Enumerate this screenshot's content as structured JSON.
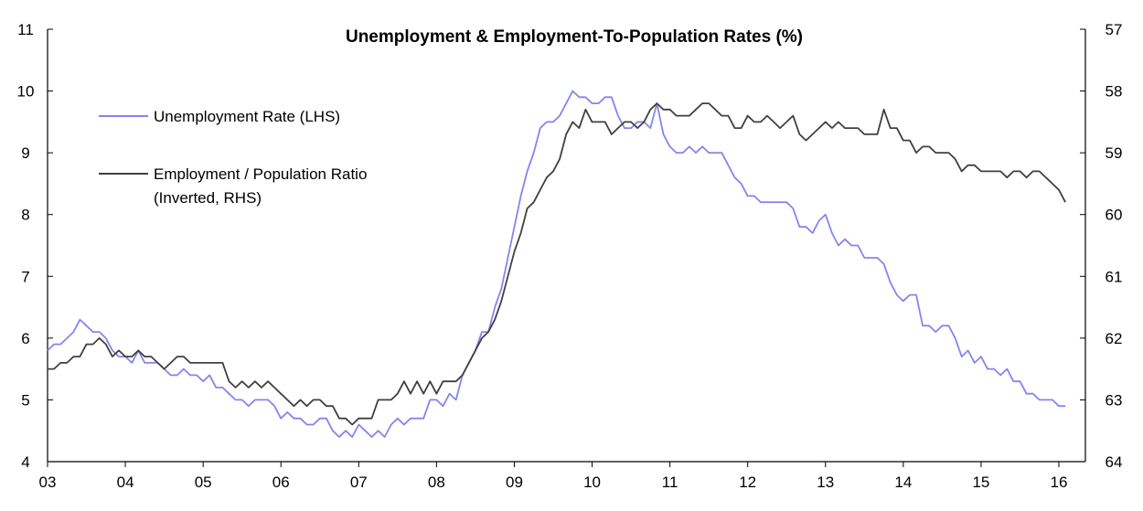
{
  "chart_data": {
    "type": "line",
    "title": "Unemployment & Employment-To-Population Rates (%)",
    "xlabel": "",
    "ylabel_left": "",
    "ylabel_right": "",
    "x_start": "2003-01",
    "frequency": "monthly",
    "x_tick_labels": [
      "03",
      "04",
      "05",
      "06",
      "07",
      "08",
      "09",
      "10",
      "11",
      "12",
      "13",
      "14",
      "15",
      "16"
    ],
    "y_left": {
      "min": 4,
      "max": 11,
      "ticks": [
        "4",
        "5",
        "6",
        "7",
        "8",
        "9",
        "10",
        "11"
      ]
    },
    "y_right": {
      "min": 57,
      "max": 64,
      "inverted": true,
      "ticks": [
        "57",
        "58",
        "59",
        "60",
        "61",
        "62",
        "63",
        "64"
      ]
    },
    "grid": false,
    "legend_position": "top-left",
    "series": [
      {
        "name": "Unemployment Rate (LHS)",
        "axis": "left",
        "color": "#8585ee",
        "values": [
          5.8,
          5.9,
          5.9,
          6.0,
          6.1,
          6.3,
          6.2,
          6.1,
          6.1,
          6.0,
          5.8,
          5.7,
          5.7,
          5.6,
          5.8,
          5.6,
          5.6,
          5.6,
          5.5,
          5.4,
          5.4,
          5.5,
          5.4,
          5.4,
          5.3,
          5.4,
          5.2,
          5.2,
          5.1,
          5.0,
          5.0,
          4.9,
          5.0,
          5.0,
          5.0,
          4.9,
          4.7,
          4.8,
          4.7,
          4.7,
          4.6,
          4.6,
          4.7,
          4.7,
          4.5,
          4.4,
          4.5,
          4.4,
          4.6,
          4.5,
          4.4,
          4.5,
          4.4,
          4.6,
          4.7,
          4.6,
          4.7,
          4.7,
          4.7,
          5.0,
          5.0,
          4.9,
          5.1,
          5.0,
          5.4,
          5.6,
          5.8,
          6.1,
          6.1,
          6.5,
          6.8,
          7.3,
          7.8,
          8.3,
          8.7,
          9.0,
          9.4,
          9.5,
          9.5,
          9.6,
          9.8,
          10.0,
          9.9,
          9.9,
          9.8,
          9.8,
          9.9,
          9.9,
          9.6,
          9.4,
          9.4,
          9.5,
          9.5,
          9.4,
          9.8,
          9.3,
          9.1,
          9.0,
          9.0,
          9.1,
          9.0,
          9.1,
          9.0,
          9.0,
          9.0,
          8.8,
          8.6,
          8.5,
          8.3,
          8.3,
          8.2,
          8.2,
          8.2,
          8.2,
          8.2,
          8.1,
          7.8,
          7.8,
          7.7,
          7.9,
          8.0,
          7.7,
          7.5,
          7.6,
          7.5,
          7.5,
          7.3,
          7.3,
          7.3,
          7.2,
          6.9,
          6.7,
          6.6,
          6.7,
          6.7,
          6.2,
          6.2,
          6.1,
          6.2,
          6.2,
          6.0,
          5.7,
          5.8,
          5.6,
          5.7,
          5.5,
          5.5,
          5.4,
          5.5,
          5.3,
          5.3,
          5.1,
          5.1,
          5.0,
          5.0,
          5.0,
          4.9,
          4.9
        ]
      },
      {
        "name": "Employment / Population Ratio",
        "name_line2": "(Inverted, RHS)",
        "axis": "right",
        "color": "#404040",
        "values": [
          62.5,
          62.5,
          62.4,
          62.4,
          62.3,
          62.3,
          62.1,
          62.1,
          62.0,
          62.1,
          62.3,
          62.2,
          62.3,
          62.3,
          62.2,
          62.3,
          62.3,
          62.4,
          62.5,
          62.4,
          62.3,
          62.3,
          62.4,
          62.4,
          62.4,
          62.4,
          62.4,
          62.4,
          62.7,
          62.8,
          62.7,
          62.8,
          62.7,
          62.8,
          62.7,
          62.8,
          62.9,
          63.0,
          63.1,
          63.0,
          63.1,
          63.0,
          63.0,
          63.1,
          63.1,
          63.3,
          63.3,
          63.4,
          63.3,
          63.3,
          63.3,
          63.0,
          63.0,
          63.0,
          62.9,
          62.7,
          62.9,
          62.7,
          62.9,
          62.7,
          62.9,
          62.7,
          62.7,
          62.7,
          62.6,
          62.4,
          62.2,
          62.0,
          61.9,
          61.7,
          61.4,
          61.0,
          60.6,
          60.3,
          59.9,
          59.8,
          59.6,
          59.4,
          59.3,
          59.1,
          58.7,
          58.5,
          58.6,
          58.3,
          58.5,
          58.5,
          58.5,
          58.7,
          58.6,
          58.5,
          58.5,
          58.6,
          58.5,
          58.3,
          58.2,
          58.3,
          58.3,
          58.4,
          58.4,
          58.4,
          58.3,
          58.2,
          58.2,
          58.3,
          58.4,
          58.4,
          58.6,
          58.6,
          58.4,
          58.5,
          58.5,
          58.4,
          58.5,
          58.6,
          58.5,
          58.4,
          58.7,
          58.8,
          58.7,
          58.6,
          58.5,
          58.6,
          58.5,
          58.6,
          58.6,
          58.6,
          58.7,
          58.7,
          58.7,
          58.3,
          58.6,
          58.6,
          58.8,
          58.8,
          59.0,
          58.9,
          58.9,
          59.0,
          59.0,
          59.0,
          59.1,
          59.3,
          59.2,
          59.2,
          59.3,
          59.3,
          59.3,
          59.3,
          59.4,
          59.3,
          59.3,
          59.4,
          59.3,
          59.3,
          59.4,
          59.5,
          59.6,
          59.8
        ]
      }
    ]
  }
}
